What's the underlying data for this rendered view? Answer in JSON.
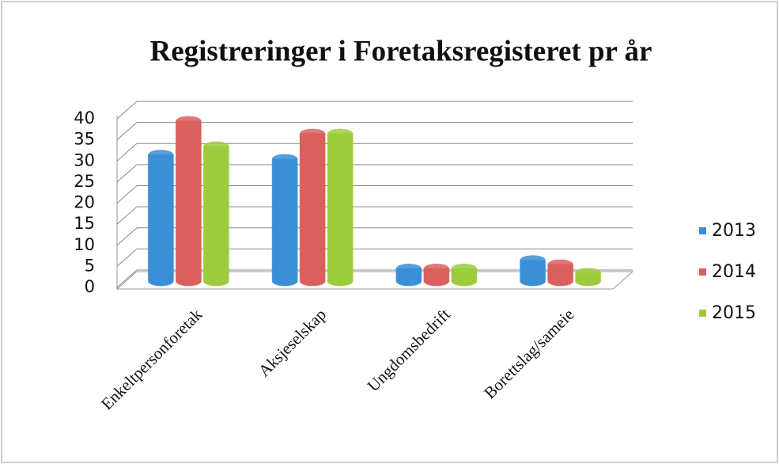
{
  "chart_data": {
    "type": "bar",
    "title": "Registreringer i Foretaksregisteret pr år",
    "categories": [
      "Enkeltpersonforetak",
      "Aksjeselskap",
      "Ungdomsbedrift",
      "Borettslag/sameie"
    ],
    "series": [
      {
        "name": "2013",
        "color": "#3a8fd6",
        "values": [
          30,
          29,
          3,
          5
        ]
      },
      {
        "name": "2014",
        "color": "#d9605e",
        "values": [
          38,
          35,
          3,
          4
        ]
      },
      {
        "name": "2015",
        "color": "#9ccc3c",
        "values": [
          32,
          35,
          3,
          2
        ]
      }
    ],
    "ylim": [
      0,
      40
    ],
    "yticks": [
      0,
      5,
      10,
      15,
      20,
      25,
      30,
      35,
      40
    ],
    "grid": true,
    "legend": "right"
  }
}
